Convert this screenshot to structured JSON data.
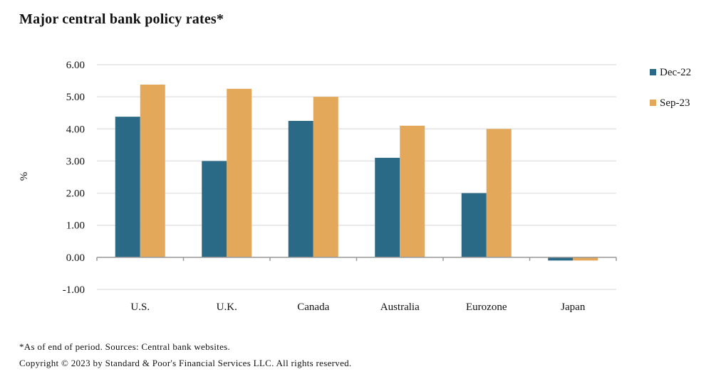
{
  "chart_data": {
    "type": "bar",
    "title": "Major central bank policy rates*",
    "xlabel": "",
    "ylabel": "%",
    "categories": [
      "U.S.",
      "U.K.",
      "Canada",
      "Australia",
      "Eurozone",
      "Japan"
    ],
    "series": [
      {
        "name": "Dec-22",
        "color": "#2b6a86",
        "values": [
          4.38,
          3.0,
          4.25,
          3.1,
          2.0,
          -0.1
        ]
      },
      {
        "name": "Sep-23",
        "color": "#e4a85a",
        "values": [
          5.38,
          5.25,
          5.0,
          4.1,
          4.0,
          -0.1
        ]
      }
    ],
    "ylim": [
      -1,
      6
    ],
    "yticks": [
      6,
      5,
      4,
      3,
      2,
      1,
      0,
      -1
    ],
    "ytick_labels": [
      "6.00",
      "5.00",
      "4.00",
      "3.00",
      "2.00",
      "1.00",
      "0.00",
      "-1.00"
    ],
    "grid": true,
    "legend_position": "right"
  },
  "footnotes": {
    "source": "*As of end of period. Sources: Central bank websites.",
    "copyright": "Copyright © 2023 by Standard & Poor's Financial Services LLC. All rights reserved."
  }
}
